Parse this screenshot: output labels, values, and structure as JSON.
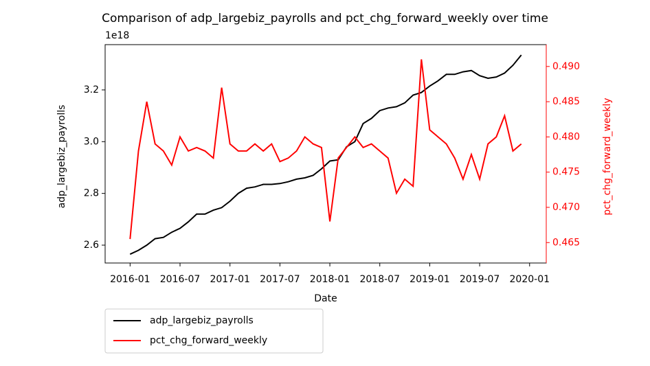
{
  "chart_data": {
    "type": "line",
    "title": "Comparison of adp_largebiz_payrolls and pct_chg_forward_weekly over time",
    "x_label": "Date",
    "y_label": "adp_largebiz_payrolls",
    "y2_label": "pct_chg_forward_weekly",
    "y_offset_text": "1e18",
    "x": [
      "2016-01",
      "2016-02",
      "2016-03",
      "2016-04",
      "2016-05",
      "2016-06",
      "2016-07",
      "2016-08",
      "2016-09",
      "2016-10",
      "2016-11",
      "2016-12",
      "2017-01",
      "2017-02",
      "2017-03",
      "2017-04",
      "2017-05",
      "2017-06",
      "2017-07",
      "2017-08",
      "2017-09",
      "2017-10",
      "2017-11",
      "2017-12",
      "2018-01",
      "2018-02",
      "2018-03",
      "2018-04",
      "2018-05",
      "2018-06",
      "2018-07",
      "2018-08",
      "2018-09",
      "2018-10",
      "2018-11",
      "2018-12",
      "2019-01",
      "2019-02",
      "2019-03",
      "2019-04",
      "2019-05",
      "2019-06",
      "2019-07",
      "2019-08",
      "2019-09",
      "2019-10",
      "2019-11",
      "2019-12"
    ],
    "xlim": [
      "2015-10",
      "2020-03"
    ],
    "xticks": [
      "2016-01",
      "2016-07",
      "2017-01",
      "2017-07",
      "2018-01",
      "2018-07",
      "2019-01",
      "2019-07",
      "2020-01"
    ],
    "ylim": [
      2.531,
      3.375
    ],
    "yticks": [
      2.6,
      2.8,
      {
        "value": 3.0,
        "label": "3.0"
      },
      3.2
    ],
    "y2lim": [
      0.4621,
      0.4931
    ],
    "y2ticks": [
      0.465,
      {
        "value": 0.47,
        "label": "0.470"
      },
      0.475,
      {
        "value": 0.48,
        "label": "0.480"
      },
      0.485,
      {
        "value": 0.49,
        "label": "0.490"
      }
    ],
    "y2_color": "#ff0000",
    "legend": "lower left outside",
    "series": [
      {
        "name": "adp_largebiz_payrolls",
        "color": "#000000",
        "values": [
          2.565,
          2.58,
          2.6,
          2.625,
          2.63,
          2.65,
          2.665,
          2.69,
          2.72,
          2.72,
          2.735,
          2.745,
          2.77,
          2.8,
          2.82,
          2.825,
          2.835,
          2.835,
          2.838,
          2.845,
          2.855,
          2.86,
          2.87,
          2.895,
          2.925,
          2.93,
          2.98,
          3.0,
          3.07,
          3.09,
          3.12,
          3.13,
          3.135,
          3.15,
          3.18,
          3.19,
          3.215,
          3.235,
          3.26,
          3.26,
          3.27,
          3.275,
          3.255,
          3.245,
          3.25,
          3.265,
          3.295,
          3.335
        ]
      },
      {
        "name": "pct_chg_forward_weekly",
        "color": "#ff0000",
        "axis": "y2",
        "values": [
          0.4655,
          0.478,
          0.485,
          0.479,
          0.478,
          0.476,
          0.48,
          0.478,
          0.4785,
          0.478,
          0.477,
          0.487,
          0.479,
          0.478,
          0.478,
          0.479,
          0.478,
          0.479,
          0.4765,
          0.477,
          0.478,
          0.48,
          0.479,
          0.4785,
          0.468,
          0.477,
          0.4785,
          0.48,
          0.4785,
          0.479,
          0.478,
          0.477,
          0.472,
          0.474,
          0.473,
          0.491,
          0.481,
          0.48,
          0.479,
          0.477,
          0.474,
          0.4775,
          0.474,
          0.479,
          0.48,
          0.483,
          0.478,
          0.479
        ]
      }
    ]
  }
}
